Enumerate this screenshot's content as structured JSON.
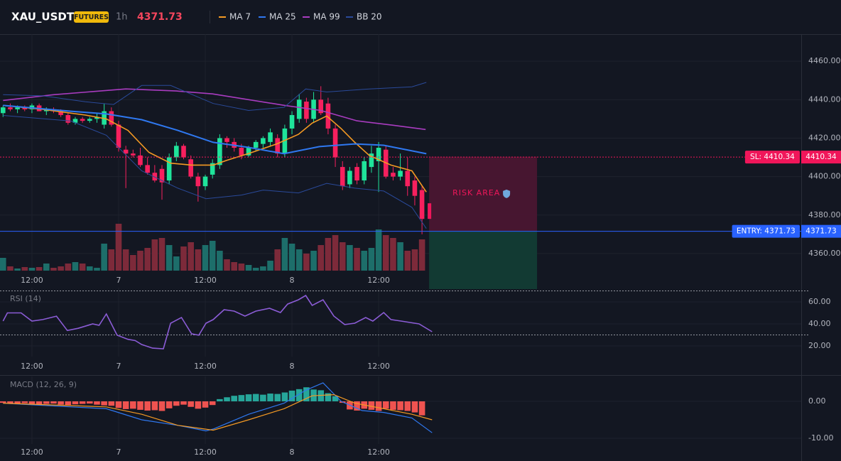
{
  "header": {
    "symbol": "XAU_USDT",
    "badge": "FUTURES",
    "interval": "1h",
    "price": 4371.73
  },
  "chart_data": [
    {
      "type": "candlestick",
      "x": [
        0,
        1,
        2,
        3,
        4,
        5,
        6,
        7,
        8,
        9,
        10,
        11,
        12,
        13,
        14,
        15,
        16,
        17,
        18,
        19,
        20,
        21,
        22,
        23,
        24,
        25,
        26,
        27,
        28,
        29,
        30,
        31,
        32,
        33,
        34,
        35,
        36,
        37,
        38,
        39,
        40,
        41,
        42,
        43,
        44,
        45,
        46,
        47,
        48,
        49,
        50,
        51,
        52,
        53,
        54,
        55,
        56,
        57,
        58
      ],
      "open": [
        4433,
        4436,
        4435,
        4436,
        4435,
        4437,
        4434,
        4435,
        4434,
        4432,
        4428,
        4430,
        4429,
        4430,
        4427,
        4434,
        4427,
        4414,
        4412,
        4411,
        4406,
        4402,
        4404,
        4398,
        4410,
        4416,
        4409,
        4400,
        4395,
        4401,
        4406,
        4420,
        4418,
        4415,
        4411,
        4415,
        4417,
        4418,
        4420,
        4412,
        4425,
        4430,
        4439,
        4430,
        4440,
        4438,
        4425,
        4405,
        4396,
        4405,
        4398,
        4405,
        4408,
        4414,
        4402,
        4400,
        4403,
        4398,
        4393
      ],
      "high": [
        4437,
        4438,
        4437,
        4437,
        4438,
        4438,
        4436,
        4436,
        4435,
        4433,
        4431,
        4431,
        4431,
        4433,
        4438,
        4436,
        4429,
        4416,
        4414,
        4415,
        4410,
        4406,
        4406,
        4412,
        4418,
        4417,
        4411,
        4402,
        4401,
        4409,
        4422,
        4421,
        4420,
        4417,
        4416,
        4419,
        4421,
        4425,
        4422,
        4427,
        4434,
        4443,
        4441,
        4444,
        4447,
        4441,
        4427,
        4408,
        4405,
        4407,
        4410,
        4416,
        4418,
        4416,
        4405,
        4412,
        4410,
        4400,
        4395
      ],
      "low": [
        4431,
        4434,
        4433,
        4434,
        4433,
        4434,
        4432,
        4433,
        4431,
        4427,
        4427,
        4428,
        4428,
        4428,
        4425,
        4426,
        4413,
        4394,
        4410,
        4405,
        4401,
        4397,
        4388,
        4396,
        4408,
        4409,
        4399,
        4387,
        4393,
        4399,
        4404,
        4415,
        4413,
        4409,
        4410,
        4413,
        4415,
        4416,
        4410,
        4410,
        4422,
        4428,
        4428,
        4428,
        4432,
        4422,
        4405,
        4393,
        4394,
        4396,
        4396,
        4402,
        4392,
        4399,
        4398,
        4398,
        4390,
        4385,
        4370
      ],
      "close": [
        4436,
        4435,
        4436,
        4435,
        4437,
        4434,
        4435,
        4434,
        4432,
        4428,
        4430,
        4429,
        4430,
        4431,
        4434,
        4427,
        4415,
        4412,
        4411,
        4406,
        4402,
        4398,
        4397,
        4410,
        4416,
        4410,
        4400,
        4395,
        4400,
        4407,
        4420,
        4418,
        4415,
        4411,
        4415,
        4418,
        4420,
        4423,
        4412,
        4425,
        4432,
        4440,
        4430,
        4440,
        4433,
        4425,
        4410,
        4395,
        4403,
        4398,
        4408,
        4412,
        4415,
        4400,
        4400,
        4403,
        4395,
        4390,
        4378
      ],
      "volume": [
        18,
        6,
        3,
        5,
        4,
        5,
        10,
        4,
        6,
        10,
        12,
        10,
        6,
        4,
        38,
        30,
        66,
        30,
        22,
        28,
        32,
        44,
        46,
        36,
        20,
        34,
        40,
        30,
        36,
        42,
        28,
        16,
        12,
        10,
        8,
        4,
        6,
        14,
        30,
        46,
        38,
        30,
        24,
        28,
        36,
        46,
        50,
        40,
        36,
        32,
        28,
        32,
        58,
        50,
        46,
        40,
        28,
        30,
        44
      ],
      "vlim": [
        0,
        100
      ],
      "up_color": "#1fe49b",
      "down_color": "#f7205e",
      "volume_up_color": "#1d6e6a",
      "volume_down_color": "#7d2a3a",
      "lines": [
        {
          "name": "MA 7",
          "color": "#f59a23",
          "x": [
            0,
            5.5,
            11.4,
            14.3,
            17.3,
            20.2,
            23.2,
            26.1,
            29.1,
            31,
            34,
            37.9,
            40.9,
            42.8,
            44.8,
            46.8,
            48.7,
            50.7,
            53.7,
            56.6,
            58.6
          ],
          "values": [
            4437,
            4435,
            4432,
            4430,
            4424,
            4412.6,
            4407,
            4406,
            4406,
            4408.5,
            4412,
            4417,
            4422,
            4427.8,
            4431.5,
            4425,
            4417.8,
            4411,
            4406,
            4403,
            4392
          ]
        },
        {
          "name": "MA 25",
          "color": "#2f78f0",
          "x": [
            0,
            9.4,
            14.3,
            19.2,
            24.2,
            29.1,
            34,
            38.9,
            43.8,
            48.7,
            52.7,
            58.6
          ],
          "values": [
            4437,
            4434,
            4432.6,
            4429.6,
            4424,
            4417.8,
            4415.2,
            4411.9,
            4415.6,
            4417,
            4416.3,
            4411.9
          ]
        },
        {
          "name": "MA 99",
          "color": "#a93cc0",
          "x": [
            0,
            7,
            17,
            24,
            29,
            39,
            44,
            49,
            54,
            58.5
          ],
          "values": [
            4439.6,
            4442.6,
            4445.6,
            4444.5,
            4443,
            4437,
            4434.4,
            4429,
            4426.7,
            4424.5
          ]
        },
        {
          "name": "BB 20",
          "color": "#2a4a9a",
          "x": [
            0,
            5.5,
            11.4,
            15.3,
            19.2,
            23.2,
            29.1,
            34,
            38.9,
            41.9,
            44.8,
            50.7,
            56.6,
            58.6
          ],
          "values": [
            4442.6,
            4442,
            4438.9,
            4437.5,
            4447.4,
            4447.4,
            4438,
            4434.4,
            4436,
            4445.6,
            4444,
            4445.6,
            4446.7,
            4449
          ]
        },
        {
          "color": "#2a4a9a",
          "x": [
            0,
            9.4,
            14.3,
            19.2,
            24.2,
            28.1,
            33,
            36,
            40.9,
            44.8,
            48.7,
            52.7,
            56.6,
            58.6
          ],
          "values": [
            4431.8,
            4428.9,
            4421.5,
            4403,
            4394,
            4388.5,
            4390.4,
            4393,
            4391.5,
            4396.5,
            4394,
            4392.5,
            4384,
            4373
          ]
        }
      ],
      "levels": [
        {
          "label": "SL: 4410.34",
          "value": 4410.34,
          "color": "#f0165a",
          "style": "dotted"
        },
        {
          "label": "ENTRY: 4371.73",
          "value": 4371.73,
          "color": "#2962ff",
          "style": "solid"
        }
      ],
      "zone_label": "RISK AREA",
      "xlim": [
        -0.42,
        110.5
      ],
      "xticks": [
        {
          "value": 4,
          "label": "12:00"
        },
        {
          "value": 16,
          "label": "7"
        },
        {
          "value": 28,
          "label": "12:00"
        },
        {
          "value": 40,
          "label": "8"
        },
        {
          "value": 52,
          "label": "12:00"
        }
      ],
      "ylim": [
        4351.1,
        4474.1
      ],
      "yticks": [
        {
          "value": 4460,
          "label": "4460.00"
        },
        {
          "value": 4440,
          "label": "4440.00"
        },
        {
          "value": 4420,
          "label": "4420.00"
        },
        {
          "value": 4400,
          "label": "4400.00"
        },
        {
          "value": 4380,
          "label": "4380.00"
        },
        {
          "value": 4360,
          "label": "4360.00"
        }
      ],
      "grid": true
    },
    {
      "type": "line",
      "title": "RSI (14)",
      "series": [
        {
          "color": "#8b5cd6",
          "x": [
            0,
            0.6,
            2.5,
            4,
            5.5,
            7.4,
            8.9,
            10.4,
            12.4,
            13.3,
            14.3,
            15.8,
            17.3,
            18.3,
            19.2,
            20.7,
            22.2,
            23.2,
            24.7,
            26.1,
            27.1,
            28.1,
            29.1,
            30.6,
            32,
            33.5,
            35,
            36.9,
            38.4,
            39.4,
            40.9,
            41.9,
            42.8,
            44.3,
            45.8,
            47.3,
            48.7,
            50.2,
            51.2,
            52.7,
            53.7,
            55.1,
            57.6,
            59.4
          ],
          "values": [
            42.6,
            50,
            50,
            42.6,
            43.9,
            47,
            34,
            36,
            40,
            38.7,
            49,
            29.7,
            26,
            24.8,
            21.3,
            18,
            17.4,
            40.6,
            45.8,
            31,
            29.7,
            40.6,
            43.9,
            52.9,
            51.6,
            47.1,
            51.6,
            54.2,
            50.3,
            58,
            61.9,
            65.8,
            56.8,
            61.9,
            47.1,
            39.4,
            40.6,
            45.8,
            42.6,
            50.3,
            43.9,
            42.6,
            40,
            32.9
          ]
        }
      ],
      "hlines": [
        70,
        30
      ],
      "xlim": [
        -0.42,
        110.5
      ],
      "xticks": [
        {
          "value": 4,
          "label": "12:00"
        },
        {
          "value": 16,
          "label": "7"
        },
        {
          "value": 28,
          "label": "12:00"
        },
        {
          "value": 40,
          "label": "8"
        },
        {
          "value": 52,
          "label": "12:00"
        }
      ],
      "ylim": [
        10.3,
        72.9
      ],
      "yticks": [
        {
          "value": 60,
          "label": "60.00"
        },
        {
          "value": 40,
          "label": "40.00"
        },
        {
          "value": 20,
          "label": "20.00"
        }
      ],
      "grid": true
    },
    {
      "type": "macd",
      "title": "MACD (12, 26, 9)",
      "x": [
        0,
        1,
        2,
        3,
        4,
        5,
        6,
        7,
        8,
        9,
        10,
        11,
        12,
        13,
        14,
        15,
        16,
        17,
        18,
        19,
        20,
        21,
        22,
        23,
        24,
        25,
        26,
        27,
        28,
        29,
        30,
        31,
        32,
        33,
        34,
        35,
        36,
        37,
        38,
        39,
        40,
        41,
        42,
        43,
        44,
        45,
        46,
        47,
        48,
        49,
        50,
        51,
        52,
        53,
        54,
        55,
        56,
        57,
        58
      ],
      "histogram": [
        -0.4,
        -0.5,
        -0.6,
        -0.5,
        -0.7,
        -0.8,
        -0.7,
        -0.6,
        -0.9,
        -1.0,
        -0.8,
        -0.7,
        -0.6,
        -0.9,
        -1.1,
        -1.2,
        -1.8,
        -2.1,
        -2.0,
        -2.3,
        -2.5,
        -2.4,
        -2.6,
        -1.9,
        -1.2,
        -0.9,
        -1.5,
        -2.0,
        -1.7,
        -1.0,
        0.6,
        1.1,
        1.5,
        1.7,
        1.9,
        2.0,
        1.8,
        2.1,
        2.0,
        2.4,
        2.9,
        3.3,
        3.8,
        3.2,
        3.0,
        2.2,
        1.4,
        -0.4,
        -2.2,
        -2.5,
        -2.0,
        -2.3,
        -2.6,
        -2.0,
        -2.3,
        -2.4,
        -2.6,
        -3.0,
        -3.8
      ],
      "up_color": "#26a69a",
      "down_color": "#ef5350",
      "series": [
        {
          "color": "#2f78f0",
          "x": [
            0,
            9.4,
            14.3,
            19.2,
            24.2,
            28.1,
            29.1,
            34,
            38.9,
            41.9,
            44.3,
            46.8,
            49.7,
            52.7,
            56.6,
            59.4
          ],
          "values": [
            -0.5,
            -1.5,
            -2,
            -5,
            -6.5,
            -8,
            -7.5,
            -3.5,
            -0.5,
            3,
            5,
            0,
            -2.5,
            -3,
            -4.5,
            -8.5
          ]
        },
        {
          "color": "#f59a23",
          "x": [
            0,
            14.3,
            19.2,
            24.2,
            29.1,
            34,
            38.9,
            42.8,
            45.8,
            48.7,
            52.7,
            56.6,
            59.4
          ],
          "values": [
            -0.5,
            -1.5,
            -3.5,
            -6.5,
            -7.8,
            -5,
            -2,
            1.5,
            1.8,
            -0.5,
            -2,
            -3.5,
            -5
          ]
        }
      ],
      "xlim": [
        -0.42,
        110.5
      ],
      "xticks": [
        {
          "value": 4,
          "label": "12:00"
        },
        {
          "value": 16,
          "label": "7"
        },
        {
          "value": 28,
          "label": "12:00"
        },
        {
          "value": 40,
          "label": "8"
        },
        {
          "value": 52,
          "label": "12:00"
        }
      ],
      "ylim": [
        -11.54,
        6.73
      ],
      "yticks": [
        {
          "value": 0,
          "label": "0.00"
        },
        {
          "value": -10,
          "label": "-10.00"
        }
      ],
      "grid": true
    }
  ]
}
